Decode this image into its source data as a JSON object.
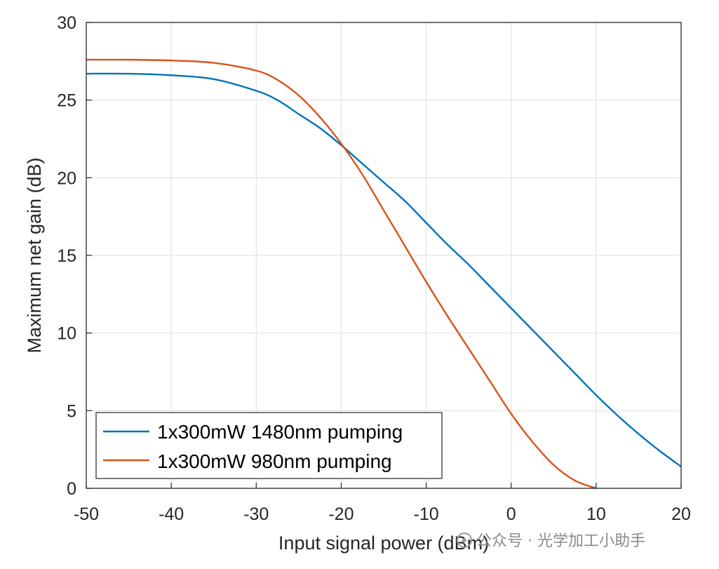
{
  "chart_data": {
    "type": "line",
    "xlabel": "Input signal power (dBm)",
    "ylabel": "Maximum net gain (dB)",
    "xlim": [
      -50,
      20
    ],
    "ylim": [
      0,
      30
    ],
    "xticks": [
      -50,
      -40,
      -30,
      -20,
      -10,
      0,
      10,
      20
    ],
    "yticks": [
      0,
      5,
      10,
      15,
      20,
      25,
      30
    ],
    "grid": true,
    "legend_position": "bottom-left",
    "series": [
      {
        "name": "1x300mW 1480nm pumping",
        "color": "#0072BD",
        "x": [
          -50,
          -45,
          -40,
          -35,
          -30,
          -27.5,
          -25,
          -22.5,
          -20,
          -17.5,
          -15,
          -12.5,
          -10,
          -7.5,
          -5,
          -2.5,
          0,
          2.5,
          5,
          7.5,
          10,
          12.5,
          15,
          17.5,
          20
        ],
        "y": [
          26.7,
          26.7,
          26.6,
          26.35,
          25.6,
          25.0,
          24.1,
          23.2,
          22.1,
          20.9,
          19.7,
          18.5,
          17.1,
          15.7,
          14.4,
          13.0,
          11.6,
          10.2,
          8.8,
          7.4,
          6.0,
          4.7,
          3.5,
          2.4,
          1.4
        ]
      },
      {
        "name": "1x300mW 980nm pumping",
        "color": "#D95319",
        "x": [
          -50,
          -45,
          -40,
          -35,
          -30,
          -27.5,
          -25,
          -22.5,
          -20,
          -17.5,
          -15,
          -12.5,
          -10,
          -7.5,
          -5,
          -2.5,
          0,
          2.5,
          5,
          7.5,
          10
        ],
        "y": [
          27.6,
          27.6,
          27.55,
          27.4,
          26.9,
          26.3,
          25.3,
          23.9,
          22.2,
          20.2,
          17.9,
          15.6,
          13.3,
          11.1,
          9.0,
          6.9,
          4.8,
          3.0,
          1.5,
          0.5,
          0.0
        ]
      }
    ]
  },
  "watermark": "公众号 · 光学加工小助手"
}
